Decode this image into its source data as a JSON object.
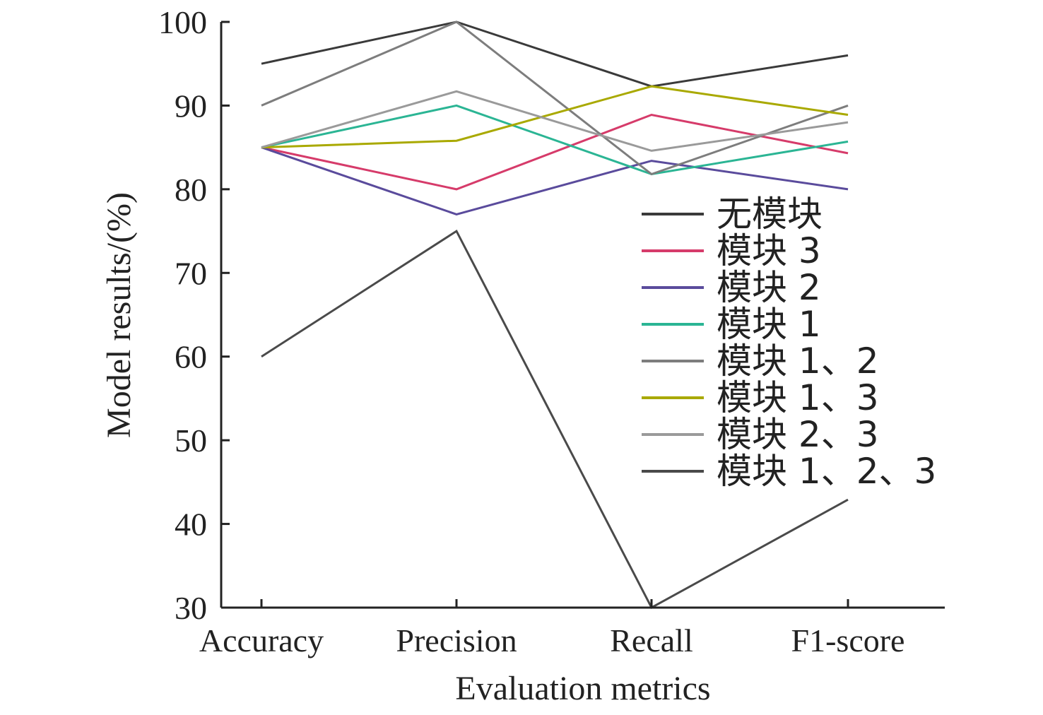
{
  "chart_data": {
    "type": "line",
    "categories": [
      "Accuracy",
      "Precision",
      "Recall",
      "F1-score"
    ],
    "xlabel": "Evaluation metrics",
    "ylabel": "Model results/(%)",
    "ylim": [
      30,
      100
    ],
    "yticks": [
      100,
      90,
      80,
      70,
      60,
      50,
      40,
      30
    ],
    "grid": false,
    "legend_position": "right-center",
    "series": [
      {
        "name": "无模块",
        "color": "#3a3a3a",
        "values": [
          95,
          100,
          92.3,
          96
        ]
      },
      {
        "name": "模块 3",
        "color": "#d63b6a",
        "values": [
          85,
          80,
          88.9,
          84.3
        ]
      },
      {
        "name": "模块 2",
        "color": "#5a4b9c",
        "values": [
          85,
          77,
          83.4,
          80
        ]
      },
      {
        "name": "模块 1",
        "color": "#2bb594",
        "values": [
          85,
          90,
          81.8,
          85.7
        ]
      },
      {
        "name": "模块 1、2",
        "color": "#7d7d7d",
        "values": [
          90,
          100,
          81.8,
          90
        ]
      },
      {
        "name": "模块 1、3",
        "color": "#a9a900",
        "values": [
          85,
          85.8,
          92.3,
          88.9
        ]
      },
      {
        "name": "模块 2、3",
        "color": "#9a9a9a",
        "values": [
          85,
          91.7,
          84.6,
          88
        ]
      },
      {
        "name": "模块 1、2、3",
        "color": "#4a4a4a",
        "values": [
          60,
          75,
          30,
          42.9
        ]
      }
    ]
  }
}
